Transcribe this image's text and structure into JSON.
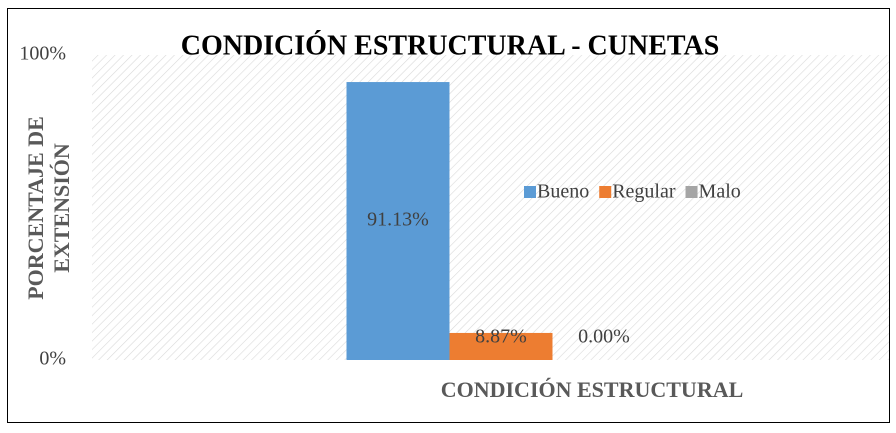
{
  "chart_data": {
    "type": "bar",
    "title": "CONDICIÓN ESTRUCTURAL - CUNETAS",
    "x_label": "CONDICIÓN ESTRUCTURAL",
    "y_label": [
      "PORCENTAJE DE",
      "EXTENSIÓN"
    ],
    "categories": [
      null
    ],
    "series": [
      {
        "name": "Bueno",
        "color": "#5b9bd5",
        "values": [
          91.13
        ],
        "value_labels": [
          "91.13%"
        ]
      },
      {
        "name": "Regular",
        "color": "#ed7d31",
        "values": [
          8.87
        ],
        "value_labels": [
          "8.87%"
        ]
      },
      {
        "name": "Malo",
        "color": "#a5a5a5",
        "values": [
          0
        ],
        "value_labels": [
          "0.00%"
        ]
      }
    ],
    "ylim": [
      0,
      100
    ],
    "yticks": [
      {
        "value": 0,
        "label": "0%"
      },
      {
        "value": 100,
        "label": "100%"
      }
    ],
    "legend": "right"
  }
}
